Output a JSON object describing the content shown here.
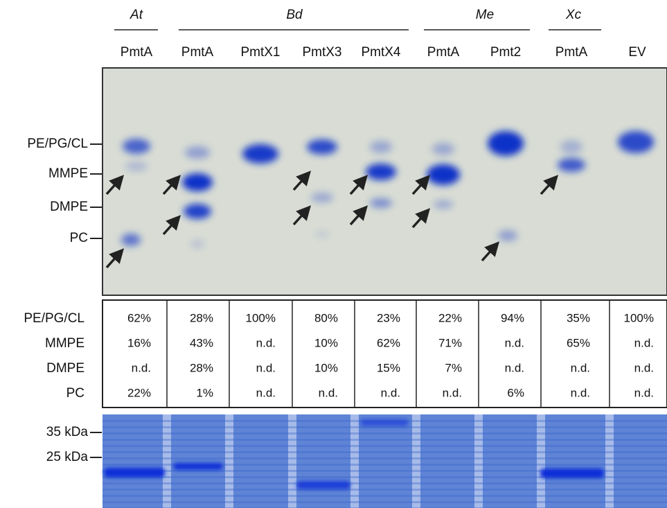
{
  "groups": [
    "At",
    "Bd",
    "Me",
    "Xc"
  ],
  "lanes": [
    "PmtA",
    "PmtA",
    "PmtX1",
    "PmtX3",
    "PmtX4",
    "PmtA",
    "Pmt2",
    "PmtA",
    "EV"
  ],
  "tlc_markers": [
    "PE/PG/CL",
    "MMPE",
    "DMPE",
    "PC"
  ],
  "table": {
    "rows": [
      {
        "label": "PE/PG/CL",
        "cells": [
          "62%",
          "28%",
          "100%",
          "80%",
          "23%",
          "22%",
          "94%",
          "35%",
          "100%"
        ]
      },
      {
        "label": "MMPE",
        "cells": [
          "16%",
          "43%",
          "n.d.",
          "10%",
          "62%",
          "71%",
          "n.d.",
          "65%",
          "n.d."
        ]
      },
      {
        "label": "DMPE",
        "cells": [
          "n.d.",
          "28%",
          "n.d.",
          "10%",
          "15%",
          "7%",
          "n.d.",
          "n.d.",
          "n.d."
        ]
      },
      {
        "label": "PC",
        "cells": [
          "22%",
          "1%",
          "n.d.",
          "n.d.",
          "n.d.",
          "n.d.",
          "6%",
          "n.d.",
          "n.d."
        ]
      }
    ]
  },
  "gel_markers": [
    "35 kDa",
    "25 kDa"
  ]
}
